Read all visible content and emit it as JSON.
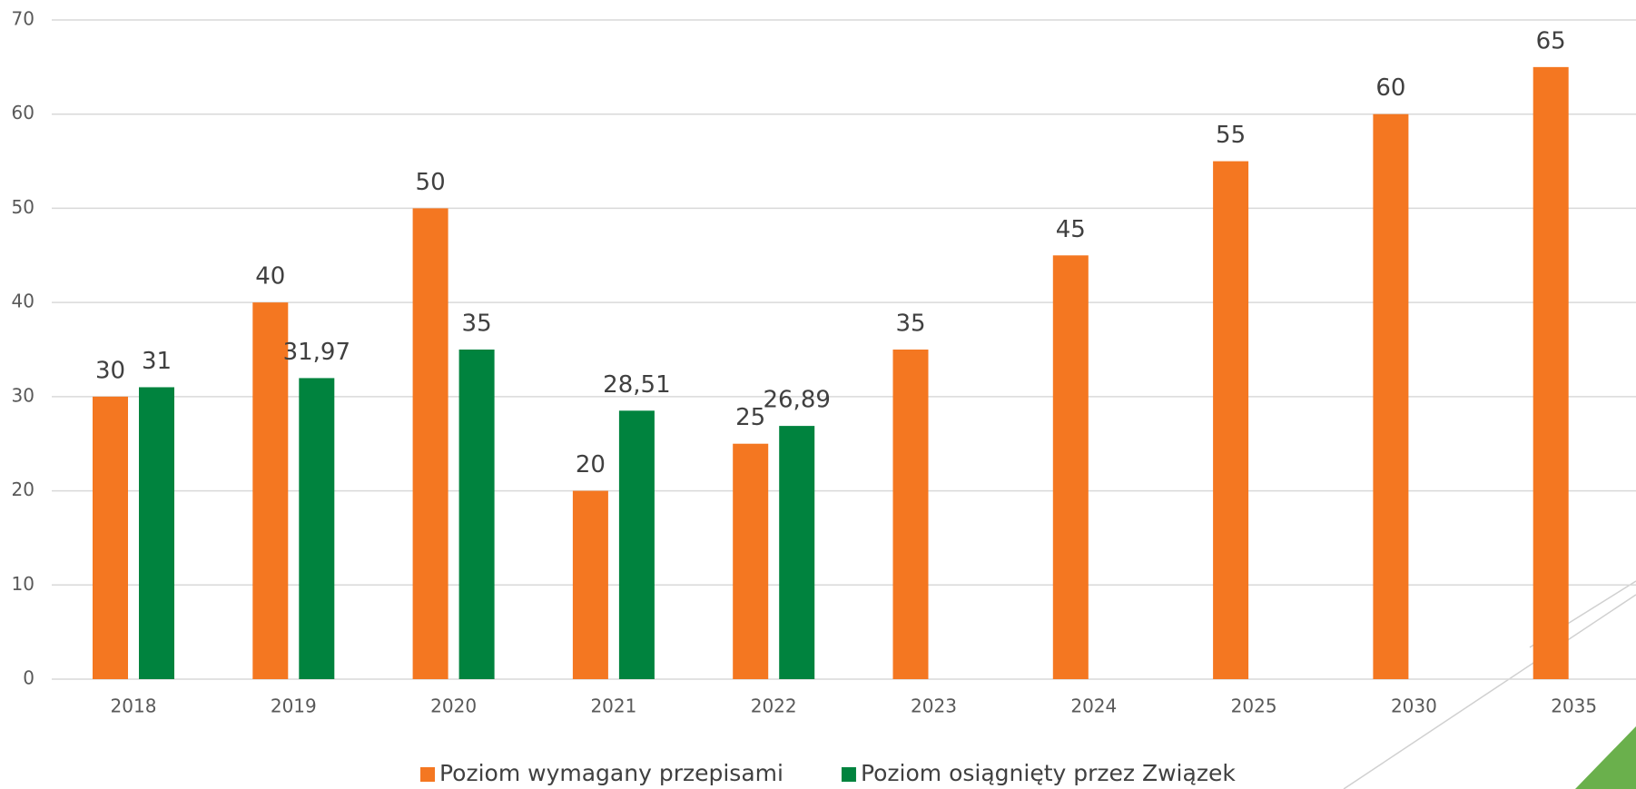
{
  "chart_data": {
    "type": "bar",
    "categories": [
      "2018",
      "2019",
      "2020",
      "2021",
      "2022",
      "2023",
      "2024",
      "2025",
      "2030",
      "2035"
    ],
    "series": [
      {
        "name": "Poziom wymagany przepisami",
        "color": "#f47721",
        "values": [
          30,
          40,
          50,
          20,
          25,
          35,
          45,
          55,
          60,
          65
        ]
      },
      {
        "name": "Poziom osiągnięty przez Związek",
        "color": "#00833e",
        "values": [
          31,
          31.97,
          35,
          28.51,
          26.89,
          null,
          null,
          null,
          null,
          null
        ],
        "value_labels": [
          "31",
          "31,97",
          "35",
          "28,51",
          "26,89",
          null,
          null,
          null,
          null,
          null
        ]
      }
    ],
    "ylim": [
      0,
      70
    ],
    "yticks": [
      0,
      10,
      20,
      30,
      40,
      50,
      60,
      70
    ],
    "grid": true,
    "legend": "bottom"
  }
}
